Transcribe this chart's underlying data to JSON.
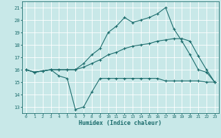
{
  "xlabel": "Humidex (Indice chaleur)",
  "xlim": [
    -0.5,
    23.5
  ],
  "ylim": [
    12.5,
    21.5
  ],
  "yticks": [
    13,
    14,
    15,
    16,
    17,
    18,
    19,
    20,
    21
  ],
  "xticks": [
    0,
    1,
    2,
    3,
    4,
    5,
    6,
    7,
    8,
    9,
    10,
    11,
    12,
    13,
    14,
    15,
    16,
    17,
    18,
    19,
    20,
    21,
    22,
    23
  ],
  "bg_color": "#c8e8e8",
  "line_color": "#1a6b6b",
  "grid_color": "#ffffff",
  "line1_y": [
    16.0,
    15.8,
    15.9,
    16.0,
    15.5,
    15.3,
    12.8,
    13.0,
    14.2,
    15.3,
    15.3,
    15.3,
    15.3,
    15.3,
    15.3,
    15.3,
    15.3,
    15.1,
    15.1,
    15.1,
    15.1,
    15.1,
    15.0,
    15.0
  ],
  "line2_y": [
    16.0,
    15.8,
    15.9,
    16.0,
    16.0,
    16.0,
    16.0,
    16.2,
    16.5,
    16.8,
    17.2,
    17.4,
    17.7,
    17.9,
    18.0,
    18.1,
    18.3,
    18.4,
    18.5,
    18.5,
    18.3,
    17.1,
    16.0,
    15.0
  ],
  "line3_y": [
    16.0,
    15.8,
    15.9,
    16.0,
    16.0,
    16.0,
    16.0,
    16.5,
    17.2,
    17.7,
    19.0,
    19.5,
    20.2,
    19.8,
    20.0,
    20.2,
    20.5,
    21.0,
    19.3,
    18.3,
    17.2,
    16.0,
    15.8,
    15.0
  ],
  "marker": "+",
  "markersize": 3,
  "linewidth": 0.8
}
